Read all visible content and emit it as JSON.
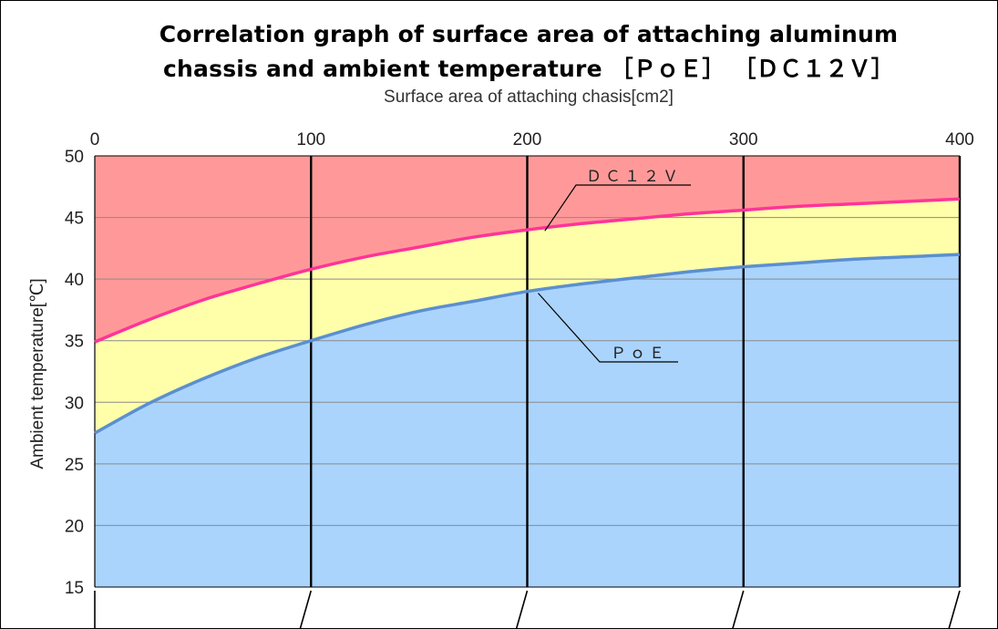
{
  "chart_data": {
    "type": "line",
    "title": "Correlation graph of surface area of attaching aluminum",
    "subtitle": "chassis and ambient temperature ［ＰｏＥ］ ［ＤＣ１２Ｖ］",
    "xlabel": "Surface area of attaching chasis[cm2]",
    "ylabel": "Ambient temperature[℃]",
    "x_ticks": [
      "0",
      "100",
      "200",
      "300",
      "400"
    ],
    "y_ticks": [
      "15",
      "20",
      "25",
      "30",
      "35",
      "40",
      "45",
      "50"
    ],
    "xlim": [
      0,
      400
    ],
    "ylim": [
      15,
      50
    ],
    "grid": true,
    "series": [
      {
        "name": "ＤＣ１２Ｖ",
        "color": "#ff3399",
        "x": [
          0,
          25,
          50,
          75,
          100,
          125,
          150,
          175,
          200,
          225,
          250,
          275,
          300,
          325,
          350,
          375,
          400
        ],
        "y": [
          34.9,
          36.7,
          38.3,
          39.6,
          40.8,
          41.8,
          42.6,
          43.4,
          44.0,
          44.5,
          44.9,
          45.3,
          45.6,
          45.9,
          46.1,
          46.3,
          46.5
        ]
      },
      {
        "name": "ＰｏＥ",
        "color": "#5b8fd0",
        "x": [
          0,
          25,
          50,
          75,
          100,
          125,
          150,
          175,
          200,
          225,
          250,
          275,
          300,
          325,
          350,
          375,
          400
        ],
        "y": [
          27.5,
          29.9,
          31.9,
          33.6,
          35.0,
          36.3,
          37.4,
          38.2,
          39.0,
          39.6,
          40.1,
          40.6,
          41.0,
          41.3,
          41.6,
          41.8,
          42.0
        ]
      }
    ],
    "regions": {
      "above_upper": "#ff9999",
      "between": "#ffffaa",
      "below_lower": "#aad4fc"
    }
  }
}
